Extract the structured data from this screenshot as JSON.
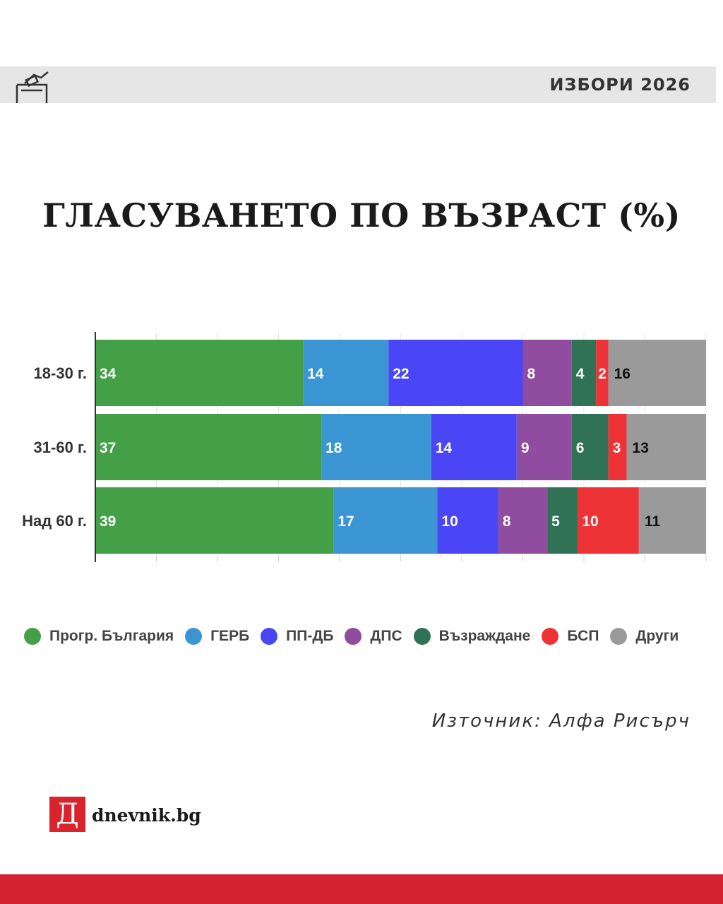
{
  "header": {
    "label": "ИЗБОРИ 2026",
    "icon": "ballot-box-icon"
  },
  "brand": {
    "logo_letter": "Д",
    "name": "dnevnik.bg",
    "accent": "#d42233"
  },
  "source": "Източник: Алфа Рисърч",
  "chart_data": {
    "type": "bar",
    "orientation": "horizontal",
    "stacked": true,
    "title": "ГЛАСУВАНЕТО ПО ВЪЗРАСТ (%)",
    "categories": [
      "18-30 г.",
      "31-60 г.",
      "Над 60 г."
    ],
    "series": [
      {
        "name": "Прогр. България",
        "color": "#43a047",
        "values": [
          34,
          37,
          39
        ]
      },
      {
        "name": "ГЕРБ",
        "color": "#3b95d3",
        "values": [
          14,
          18,
          17
        ]
      },
      {
        "name": "ПП-ДБ",
        "color": "#4a46f5",
        "values": [
          22,
          14,
          10
        ]
      },
      {
        "name": "ДПС",
        "color": "#904c9e",
        "values": [
          8,
          9,
          8
        ]
      },
      {
        "name": "Възраждане",
        "color": "#2f7255",
        "values": [
          4,
          6,
          5
        ]
      },
      {
        "name": "БСП",
        "color": "#ee3336",
        "values": [
          2,
          3,
          10
        ]
      },
      {
        "name": "Други",
        "color": "#9a9a9a",
        "values": [
          16,
          13,
          11
        ]
      }
    ],
    "xlim": [
      0,
      100
    ],
    "grid": true,
    "legend": "bottom",
    "xlabel": "",
    "ylabel": ""
  }
}
